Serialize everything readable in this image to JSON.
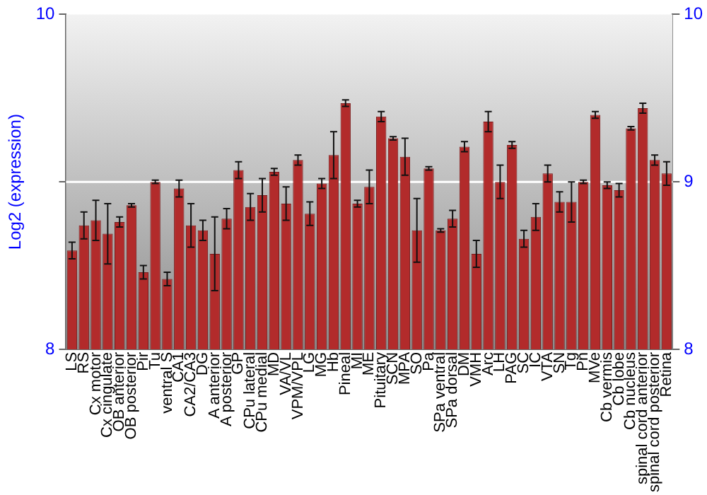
{
  "chart_data": {
    "type": "bar",
    "ylabel": "Log2 (expression)",
    "categories": [
      "LS",
      "RS",
      "Cx motor",
      "Cx cingulate",
      "OB anterior",
      "OB posterior",
      "Pir",
      "Tu",
      "ventral S",
      "CA1",
      "CA2/CA3",
      "DG",
      "A anterior",
      "A posterior",
      "GP",
      "CPu lateral",
      "CPu medial",
      "MD",
      "VA/VL",
      "VPM/VPL",
      "LG",
      "MG",
      "Hb",
      "Pineal",
      "MI",
      "ME",
      "Pituitary",
      "SCN",
      "MPA",
      "SO",
      "Pa",
      "SPa ventral",
      "SPa dorsal",
      "DM",
      "VMH",
      "Arc",
      "LH",
      "PAG",
      "SC",
      "IC",
      "VTA",
      "SN",
      "Tg",
      "Pn",
      "MVe",
      "Cb vermis",
      "Cb lobe",
      "Cb nucleus",
      "spinal cord anterior",
      "spinal cord posterior",
      "Retina"
    ],
    "values": [
      8.59,
      8.74,
      8.77,
      8.69,
      8.76,
      8.86,
      8.46,
      9.0,
      8.42,
      8.96,
      8.74,
      8.71,
      8.57,
      8.78,
      9.07,
      8.85,
      8.92,
      9.06,
      8.87,
      9.13,
      8.81,
      8.99,
      9.16,
      9.47,
      8.87,
      8.97,
      9.39,
      9.26,
      9.15,
      8.71,
      9.08,
      8.71,
      8.78,
      9.21,
      8.57,
      9.36,
      9.0,
      9.22,
      8.66,
      8.79,
      9.05,
      8.88,
      8.88,
      9.0,
      9.4,
      8.98,
      8.95,
      9.32,
      9.44,
      9.13,
      9.05
    ],
    "errors": [
      0.05,
      0.08,
      0.12,
      0.18,
      0.03,
      0.01,
      0.04,
      0.01,
      0.04,
      0.05,
      0.13,
      0.06,
      0.22,
      0.06,
      0.05,
      0.08,
      0.1,
      0.02,
      0.1,
      0.03,
      0.07,
      0.03,
      0.14,
      0.02,
      0.02,
      0.1,
      0.03,
      0.01,
      0.11,
      0.19,
      0.01,
      0.01,
      0.05,
      0.03,
      0.08,
      0.06,
      0.1,
      0.02,
      0.05,
      0.08,
      0.05,
      0.06,
      0.12,
      0.01,
      0.02,
      0.02,
      0.04,
      0.01,
      0.03,
      0.03,
      0.07
    ],
    "color": "#b22b2b",
    "ylim": [
      8,
      10
    ],
    "yticks": [
      8,
      {
        "value": 9,
        "label": null
      },
      10
    ],
    "y2lim": [
      8,
      10
    ],
    "y2ticks": [
      8,
      9,
      10
    ],
    "ref_lines": [
      {
        "axis": "y",
        "value": 9,
        "color": "#ffffff"
      }
    ],
    "grid": false,
    "legend": false
  }
}
